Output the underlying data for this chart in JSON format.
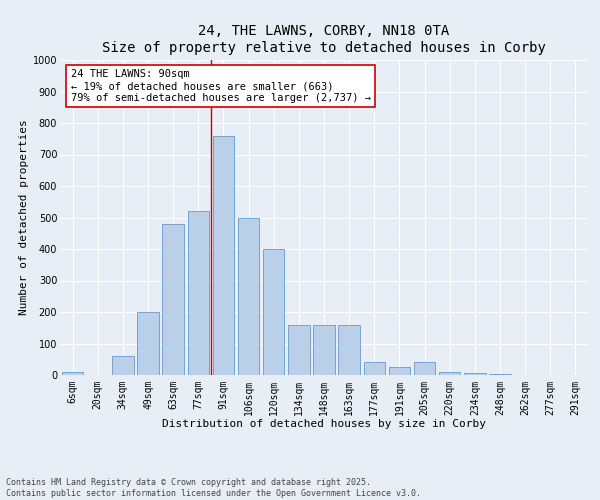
{
  "title": "24, THE LAWNS, CORBY, NN18 0TA",
  "subtitle": "Size of property relative to detached houses in Corby",
  "xlabel": "Distribution of detached houses by size in Corby",
  "ylabel": "Number of detached properties",
  "categories": [
    "6sqm",
    "20sqm",
    "34sqm",
    "49sqm",
    "63sqm",
    "77sqm",
    "91sqm",
    "106sqm",
    "120sqm",
    "134sqm",
    "148sqm",
    "163sqm",
    "177sqm",
    "191sqm",
    "205sqm",
    "220sqm",
    "234sqm",
    "248sqm",
    "262sqm",
    "277sqm",
    "291sqm"
  ],
  "values": [
    10,
    0,
    60,
    200,
    480,
    520,
    760,
    500,
    400,
    160,
    160,
    160,
    40,
    25,
    40,
    8,
    5,
    3,
    1,
    1,
    1
  ],
  "bar_color": "#bad0e8",
  "bar_edge_color": "#6699cc",
  "vline_x_index": 6,
  "vline_color": "#cc0000",
  "annotation_text": "24 THE LAWNS: 90sqm\n← 19% of detached houses are smaller (663)\n79% of semi-detached houses are larger (2,737) →",
  "annotation_box_color": "#ffffff",
  "annotation_box_edge": "#cc0000",
  "ylim": [
    0,
    1000
  ],
  "yticks": [
    0,
    100,
    200,
    300,
    400,
    500,
    600,
    700,
    800,
    900,
    1000
  ],
  "background_color": "#e8eef5",
  "footer_text": "Contains HM Land Registry data © Crown copyright and database right 2025.\nContains public sector information licensed under the Open Government Licence v3.0.",
  "title_fontsize": 10,
  "axis_label_fontsize": 8,
  "tick_fontsize": 7,
  "annotation_fontsize": 7.5,
  "footer_fontsize": 6
}
